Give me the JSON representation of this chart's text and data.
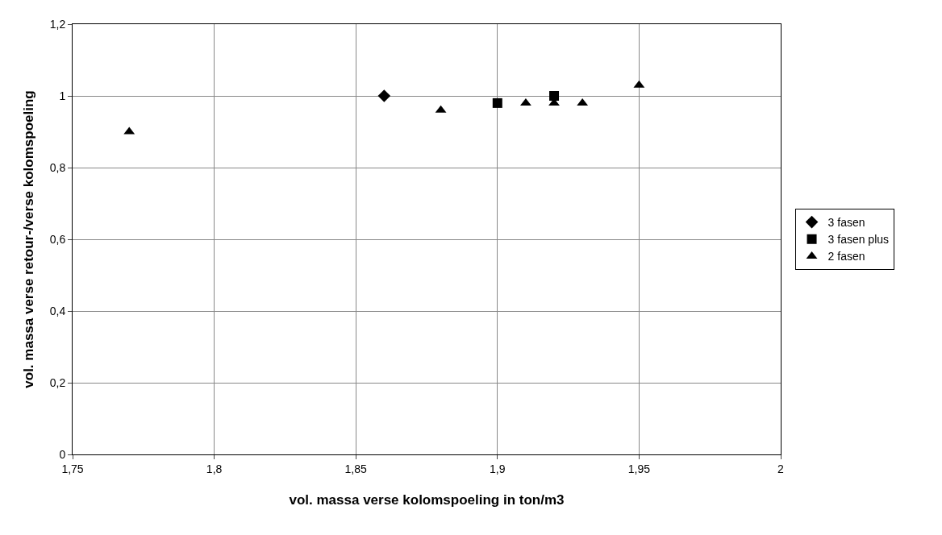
{
  "chart_data": {
    "type": "scatter",
    "xlabel": "vol. massa verse kolomspoeling in ton/m3",
    "ylabel": "vol. massa verse retour-/verse kolomspoeling",
    "xlim": [
      1.75,
      2
    ],
    "xticks": [
      {
        "value": 1.75,
        "label": "1,75"
      },
      {
        "value": 1.8,
        "label": "1,8"
      },
      {
        "value": 1.85,
        "label": "1,85"
      },
      {
        "value": 1.9,
        "label": "1,9"
      },
      {
        "value": 1.95,
        "label": "1,95"
      },
      2
    ],
    "ylim": [
      0,
      1.2
    ],
    "yticks": [
      0,
      {
        "value": 0.2,
        "label": "0,2"
      },
      {
        "value": 0.4,
        "label": "0,4"
      },
      {
        "value": 0.6,
        "label": "0,6"
      },
      {
        "value": 0.8,
        "label": "0,8"
      },
      1,
      {
        "value": 1.2,
        "label": "1,2"
      }
    ],
    "grid": true,
    "legend": "right",
    "series": [
      {
        "name": "3 fasen",
        "color": "#000000",
        "marker": "diamond",
        "x": [
          1.86
        ],
        "values": [
          1.0
        ]
      },
      {
        "name": "3 fasen plus",
        "color": "#000000",
        "marker": "square",
        "x": [
          1.9,
          1.92
        ],
        "values": [
          0.98,
          1.0
        ]
      },
      {
        "name": "2 fasen",
        "color": "#000000",
        "marker": "triangle",
        "x": [
          1.77,
          1.88,
          1.91,
          1.92,
          1.93,
          1.95
        ],
        "values": [
          0.9,
          0.96,
          0.98,
          0.98,
          0.98,
          1.03
        ]
      }
    ]
  }
}
